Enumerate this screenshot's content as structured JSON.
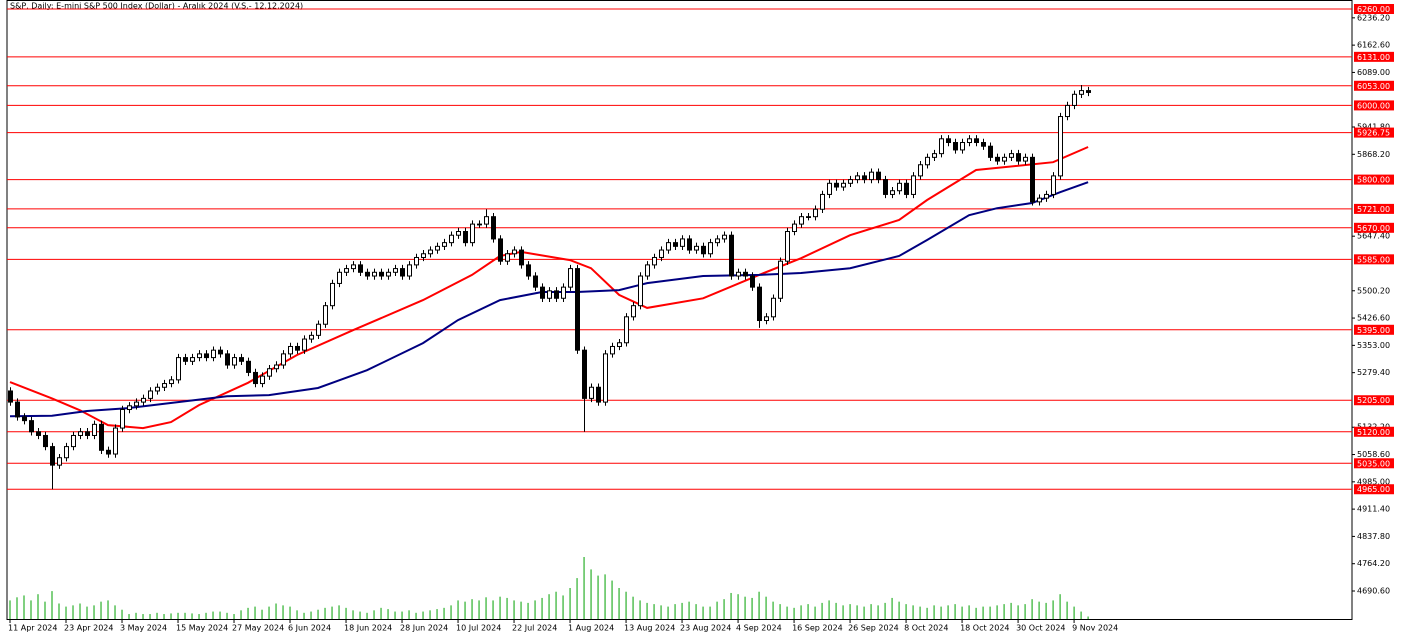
{
  "chart_data": {
    "type": "candlestick",
    "title": "S&P, Daily:  E-mini S&P 500 Index (Dollar) - Aralık 2024 (V.S.- 12.12.2024)",
    "xlim": [
      -0.43,
      191.7
    ],
    "ylim": [
      4612.4,
      6284.3
    ],
    "xticks": [
      {
        "value": 0,
        "label": "11 Apr 2024"
      },
      {
        "value": 8,
        "label": "23 Apr 2024"
      },
      {
        "value": 16,
        "label": "3 May 2024"
      },
      {
        "value": 24,
        "label": "15 May 2024"
      },
      {
        "value": 32,
        "label": "27 May 2024"
      },
      {
        "value": 40,
        "label": "6 Jun 2024"
      },
      {
        "value": 48,
        "label": "18 Jun 2024"
      },
      {
        "value": 56,
        "label": "28 Jun 2024"
      },
      {
        "value": 64,
        "label": "10 Jul 2024"
      },
      {
        "value": 72,
        "label": "22 Jul 2024"
      },
      {
        "value": 80,
        "label": "1 Aug 2024"
      },
      {
        "value": 88,
        "label": "13 Aug 2024"
      },
      {
        "value": 96,
        "label": "23 Aug 2024"
      },
      {
        "value": 104,
        "label": "4 Sep 2024"
      },
      {
        "value": 112,
        "label": "16 Sep 2024"
      },
      {
        "value": 120,
        "label": "26 Sep 2024"
      },
      {
        "value": 128,
        "label": "8 Oct 2024"
      },
      {
        "value": 136,
        "label": "18 Oct 2024"
      },
      {
        "value": 144,
        "label": "30 Oct 2024"
      },
      {
        "value": 152,
        "label": "9 Nov 2024"
      }
    ],
    "yticks": [
      {
        "value": 6236.2,
        "label": "6236.20"
      },
      {
        "value": 6162.6,
        "label": "6162.60"
      },
      {
        "value": 6089,
        "label": "6089.00"
      },
      {
        "value": 5941.8,
        "label": "5941.80"
      },
      {
        "value": 5868.2,
        "label": "5868.20"
      },
      {
        "value": 5647.4,
        "label": "5647.40"
      },
      {
        "value": 5500.2,
        "label": "5500.20"
      },
      {
        "value": 5426.6,
        "label": "5426.60"
      },
      {
        "value": 5353,
        "label": "5353.00"
      },
      {
        "value": 5279.4,
        "label": "5279.40"
      },
      {
        "value": 5132.2,
        "label": "5132.20"
      },
      {
        "value": 5058.6,
        "label": "5058.60"
      },
      {
        "value": 4985,
        "label": "4985.00"
      },
      {
        "value": 4911.4,
        "label": "4911.40"
      },
      {
        "value": 4837.8,
        "label": "4837.80"
      },
      {
        "value": 4764.2,
        "label": "4764.20"
      },
      {
        "value": 4690.6,
        "label": "4690.60"
      }
    ],
    "levels": [
      {
        "value": 6260,
        "label": "6260.00"
      },
      {
        "value": 6131,
        "label": "6131.00"
      },
      {
        "value": 6053,
        "label": "6053.00"
      },
      {
        "value": 6000,
        "label": "6000.00"
      },
      {
        "value": 5926.75,
        "label": "5926.75"
      },
      {
        "value": 5800,
        "label": "5800.00"
      },
      {
        "value": 5721,
        "label": "5721.00"
      },
      {
        "value": 5670,
        "label": "5670.00"
      },
      {
        "value": 5585,
        "label": "5585.00"
      },
      {
        "value": 5395,
        "label": "5395.00"
      },
      {
        "value": 5205,
        "label": "5205.00"
      },
      {
        "value": 5120,
        "label": "5120.00"
      },
      {
        "value": 5035,
        "label": "5035.00"
      },
      {
        "value": 4965,
        "label": "4965.00"
      }
    ],
    "level_color": "#ff0000",
    "up_color": "#ffffff",
    "down_color": "#000000",
    "open": [
      5230,
      5200,
      5160,
      5150,
      5120,
      5110,
      5080,
      5030,
      5050,
      5080,
      5110,
      5120,
      5110,
      5140,
      5070,
      5060,
      5130,
      5180,
      5190,
      5200,
      5210,
      5230,
      5240,
      5250,
      5260,
      5320,
      5310,
      5320,
      5330,
      5320,
      5340,
      5330,
      5300,
      5320,
      5310,
      5280,
      5250,
      5270,
      5290,
      5300,
      5330,
      5350,
      5340,
      5370,
      5380,
      5410,
      5460,
      5520,
      5550,
      5560,
      5570,
      5550,
      5540,
      5550,
      5540,
      5550,
      5560,
      5540,
      5570,
      5590,
      5600,
      5610,
      5620,
      5630,
      5650,
      5660,
      5630,
      5680,
      5680,
      5700,
      5640,
      5580,
      5600,
      5610,
      5570,
      5540,
      5510,
      5480,
      5500,
      5480,
      5510,
      5560,
      5340,
      5210,
      5240,
      5200,
      5330,
      5350,
      5360,
      5430,
      5460,
      5540,
      5570,
      5590,
      5610,
      5630,
      5620,
      5640,
      5610,
      5620,
      5600,
      5630,
      5640,
      5650,
      5540,
      5550,
      5540,
      5510,
      5420,
      5430,
      5480,
      5580,
      5660,
      5680,
      5700,
      5700,
      5720,
      5760,
      5790,
      5780,
      5790,
      5800,
      5810,
      5800,
      5820,
      5800,
      5760,
      5770,
      5790,
      5760,
      5810,
      5840,
      5860,
      5870,
      5910,
      5900,
      5880,
      5900,
      5910,
      5900,
      5890,
      5860,
      5850,
      5860,
      5870,
      5850,
      5860,
      5740,
      5750,
      5760,
      5810,
      5970,
      6000,
      6030,
      6040
    ],
    "high": [
      5240,
      5210,
      5170,
      5160,
      5130,
      5120,
      5090,
      5060,
      5090,
      5120,
      5130,
      5130,
      5150,
      5150,
      5080,
      5140,
      5190,
      5200,
      5210,
      5220,
      5240,
      5250,
      5260,
      5270,
      5330,
      5330,
      5330,
      5340,
      5340,
      5350,
      5350,
      5340,
      5330,
      5330,
      5320,
      5290,
      5280,
      5300,
      5310,
      5340,
      5360,
      5360,
      5380,
      5390,
      5420,
      5470,
      5530,
      5560,
      5570,
      5580,
      5580,
      5560,
      5560,
      5560,
      5560,
      5570,
      5570,
      5580,
      5600,
      5610,
      5620,
      5630,
      5640,
      5660,
      5670,
      5670,
      5690,
      5690,
      5720,
      5710,
      5650,
      5610,
      5620,
      5620,
      5580,
      5550,
      5520,
      5510,
      5510,
      5520,
      5570,
      5570,
      5350,
      5250,
      5250,
      5340,
      5360,
      5370,
      5440,
      5470,
      5550,
      5580,
      5600,
      5620,
      5640,
      5640,
      5650,
      5650,
      5630,
      5630,
      5640,
      5650,
      5660,
      5660,
      5560,
      5560,
      5550,
      5520,
      5440,
      5490,
      5590,
      5670,
      5690,
      5710,
      5710,
      5730,
      5770,
      5800,
      5800,
      5800,
      5810,
      5820,
      5820,
      5830,
      5830,
      5810,
      5780,
      5800,
      5800,
      5820,
      5850,
      5870,
      5880,
      5920,
      5920,
      5910,
      5910,
      5920,
      5920,
      5910,
      5900,
      5870,
      5870,
      5880,
      5880,
      5870,
      5870,
      5760,
      5770,
      5820,
      5980,
      6010,
      6040,
      6055,
      6050
    ],
    "low": [
      5190,
      5150,
      5140,
      5110,
      5100,
      5070,
      4965,
      5020,
      5040,
      5070,
      5100,
      5100,
      5100,
      5060,
      5050,
      5050,
      5120,
      5170,
      5180,
      5190,
      5200,
      5220,
      5230,
      5240,
      5250,
      5300,
      5300,
      5310,
      5310,
      5310,
      5320,
      5290,
      5290,
      5300,
      5270,
      5240,
      5240,
      5260,
      5280,
      5290,
      5320,
      5330,
      5330,
      5360,
      5370,
      5400,
      5450,
      5510,
      5540,
      5550,
      5540,
      5530,
      5530,
      5530,
      5530,
      5540,
      5530,
      5530,
      5560,
      5580,
      5590,
      5600,
      5610,
      5620,
      5640,
      5620,
      5620,
      5670,
      5670,
      5630,
      5570,
      5570,
      5590,
      5560,
      5530,
      5500,
      5470,
      5470,
      5470,
      5470,
      5500,
      5330,
      5120,
      5200,
      5190,
      5190,
      5320,
      5340,
      5350,
      5420,
      5450,
      5530,
      5560,
      5580,
      5600,
      5610,
      5610,
      5600,
      5600,
      5590,
      5590,
      5620,
      5630,
      5530,
      5530,
      5530,
      5500,
      5400,
      5410,
      5420,
      5470,
      5570,
      5650,
      5670,
      5690,
      5690,
      5710,
      5750,
      5770,
      5770,
      5780,
      5790,
      5790,
      5790,
      5790,
      5750,
      5750,
      5760,
      5750,
      5750,
      5800,
      5830,
      5850,
      5860,
      5890,
      5870,
      5870,
      5890,
      5890,
      5880,
      5850,
      5840,
      5840,
      5850,
      5840,
      5840,
      5730,
      5730,
      5740,
      5750,
      5800,
      5960,
      5990,
      6020,
      6025
    ],
    "close": [
      5200,
      5160,
      5150,
      5120,
      5110,
      5080,
      5030,
      5050,
      5080,
      5110,
      5120,
      5110,
      5140,
      5070,
      5060,
      5130,
      5180,
      5190,
      5200,
      5210,
      5230,
      5240,
      5250,
      5260,
      5320,
      5310,
      5320,
      5330,
      5320,
      5340,
      5330,
      5300,
      5320,
      5310,
      5280,
      5250,
      5270,
      5290,
      5300,
      5330,
      5350,
      5340,
      5370,
      5380,
      5410,
      5460,
      5520,
      5550,
      5560,
      5570,
      5550,
      5540,
      5550,
      5540,
      5550,
      5560,
      5540,
      5570,
      5590,
      5600,
      5610,
      5620,
      5630,
      5650,
      5660,
      5630,
      5680,
      5680,
      5700,
      5640,
      5580,
      5600,
      5610,
      5570,
      5540,
      5510,
      5480,
      5500,
      5480,
      5510,
      5560,
      5340,
      5210,
      5240,
      5200,
      5330,
      5350,
      5360,
      5430,
      5460,
      5540,
      5570,
      5590,
      5610,
      5630,
      5620,
      5640,
      5610,
      5620,
      5600,
      5630,
      5640,
      5650,
      5540,
      5550,
      5540,
      5510,
      5420,
      5430,
      5480,
      5580,
      5660,
      5680,
      5700,
      5700,
      5720,
      5760,
      5790,
      5780,
      5790,
      5800,
      5810,
      5800,
      5820,
      5800,
      5760,
      5770,
      5790,
      5760,
      5810,
      5840,
      5860,
      5870,
      5910,
      5900,
      5880,
      5900,
      5910,
      5900,
      5890,
      5860,
      5850,
      5860,
      5870,
      5850,
      5860,
      5740,
      5750,
      5760,
      5810,
      5970,
      6000,
      6030,
      6040,
      6035
    ],
    "ma": [
      {
        "color": "#ff0000",
        "x": [
          0,
          6,
          10,
          14,
          19,
          23,
          27,
          34,
          41,
          49,
          59,
          66,
          70,
          73,
          80,
          83,
          87,
          91,
          99,
          107,
          113,
          120,
          127,
          131,
          138,
          149,
          154
        ],
        "values": [
          5254,
          5210,
          5178,
          5138,
          5130,
          5146,
          5192,
          5252,
          5327,
          5394,
          5475,
          5543,
          5594,
          5605,
          5583,
          5561,
          5489,
          5454,
          5480,
          5543,
          5588,
          5650,
          5691,
          5745,
          5826,
          5847,
          5888
        ]
      },
      {
        "color": "#000080",
        "x": [
          0,
          6,
          11,
          17,
          24,
          31,
          37,
          44,
          51,
          59,
          64,
          70,
          76,
          81,
          87,
          91,
          99,
          107,
          113,
          120,
          127,
          131,
          137,
          141,
          146,
          150,
          154
        ],
        "values": [
          5162,
          5163,
          5176,
          5184,
          5200,
          5216,
          5219,
          5238,
          5286,
          5359,
          5421,
          5475,
          5497,
          5497,
          5502,
          5521,
          5540,
          5543,
          5548,
          5561,
          5594,
          5637,
          5704,
          5723,
          5737,
          5766,
          5793
        ]
      }
    ],
    "volume": {
      "color": "#00a000",
      "lim": [
        0,
        100
      ],
      "values": [
        30,
        35,
        38,
        30,
        40,
        28,
        45,
        25,
        20,
        22,
        25,
        20,
        22,
        28,
        30,
        22,
        15,
        8,
        10,
        8,
        8,
        10,
        8,
        9,
        10,
        10,
        9,
        8,
        10,
        12,
        12,
        10,
        8,
        14,
        18,
        20,
        15,
        20,
        25,
        22,
        20,
        14,
        10,
        12,
        15,
        18,
        20,
        22,
        18,
        14,
        12,
        10,
        14,
        18,
        16,
        12,
        12,
        14,
        10,
        12,
        14,
        16,
        18,
        22,
        30,
        28,
        32,
        30,
        35,
        30,
        36,
        34,
        30,
        28,
        26,
        30,
        34,
        40,
        44,
        38,
        50,
        66,
        100,
        80,
        70,
        72,
        62,
        50,
        44,
        36,
        30,
        26,
        24,
        22,
        20,
        24,
        26,
        28,
        24,
        20,
        20,
        28,
        32,
        42,
        40,
        36,
        34,
        44,
        36,
        28,
        24,
        20,
        18,
        22,
        24,
        20,
        26,
        30,
        26,
        22,
        24,
        22,
        20,
        24,
        22,
        26,
        34,
        28,
        24,
        22,
        20,
        18,
        22,
        20,
        22,
        24,
        20,
        22,
        18,
        20,
        20,
        22,
        24,
        26,
        22,
        24,
        32,
        28,
        26,
        30,
        40,
        28,
        20,
        12,
        4
      ]
    }
  }
}
